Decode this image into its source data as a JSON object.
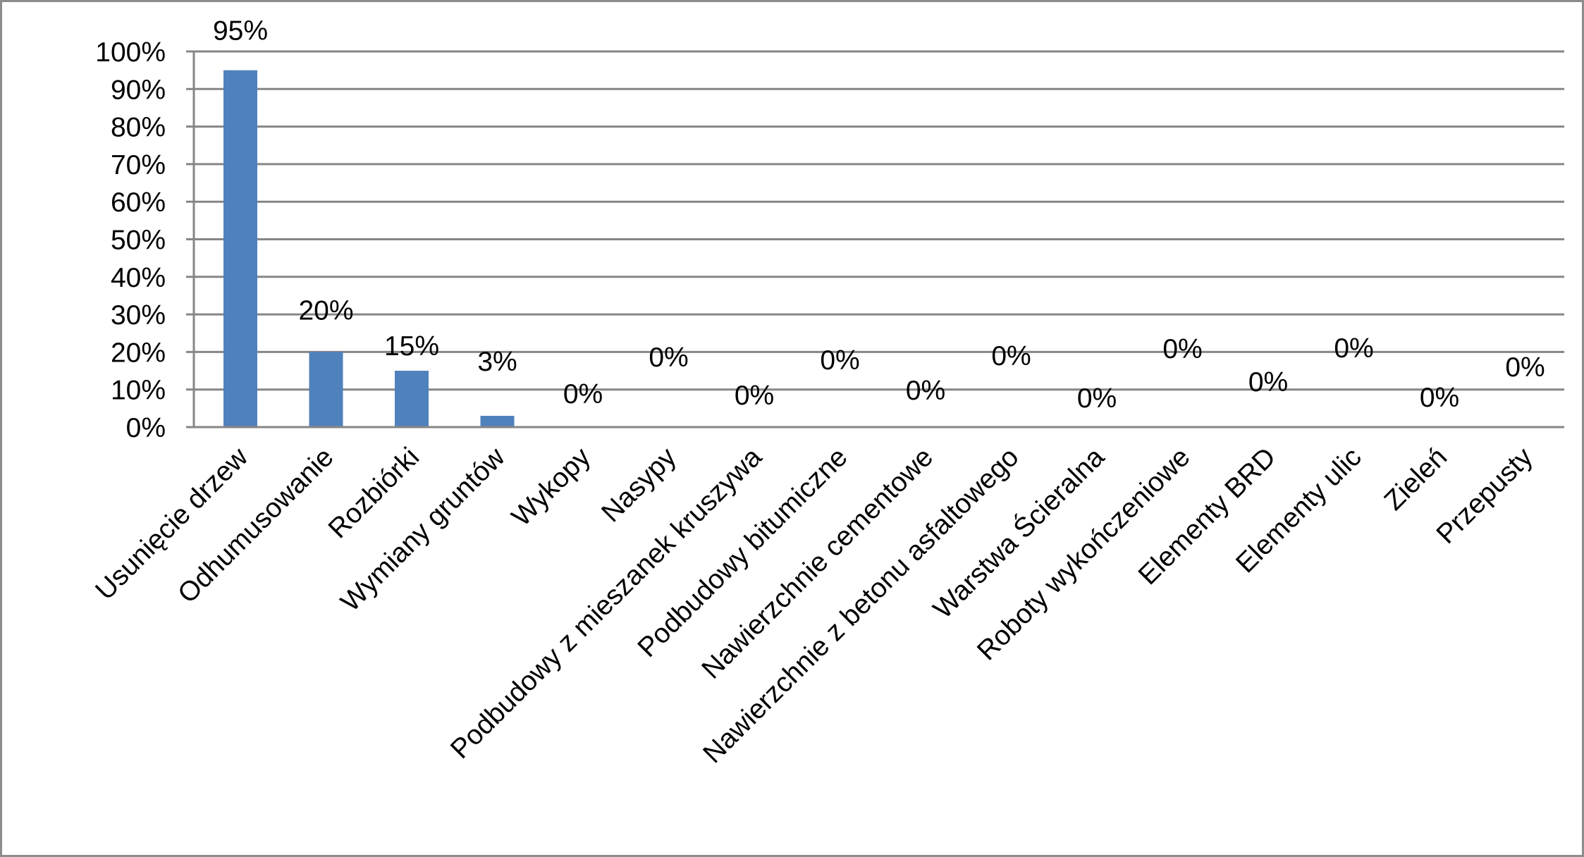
{
  "chart_data": {
    "type": "bar",
    "title": "",
    "xlabel": "",
    "ylabel": "",
    "ylim": [
      0,
      100
    ],
    "y_ticks": [
      "0%",
      "10%",
      "20%",
      "30%",
      "40%",
      "50%",
      "60%",
      "70%",
      "80%",
      "90%",
      "100%"
    ],
    "grid": true,
    "legend": "none",
    "bar_color": "#4f81bd",
    "grid_color": "#868686",
    "categories": [
      "Usunięcie drzew",
      "Odhumusowanie",
      "Rozbiórki",
      "Wymiany gruntów",
      "Wykopy",
      "Nasypy",
      "Podbudowy z mieszanek kruszywa",
      "Podbudowy bitumiczne",
      "Nawierzchnie cementowe",
      "Nawierzchnie z betonu asfaltowego",
      "Warstwa Ścieralna",
      "Roboty wykończeniowe",
      "Elementy BRD",
      "Elementy ulic",
      "Zieleń",
      "Przepusty"
    ],
    "values": [
      95,
      20,
      15,
      3,
      0,
      0,
      0,
      0,
      0,
      0,
      0,
      0,
      0,
      0,
      0,
      0
    ],
    "data_labels": [
      "95%",
      "20%",
      "15%",
      "3%",
      "0%",
      "0%",
      "0%",
      "0%",
      "0%",
      "0%",
      "0%",
      "0%",
      "0%",
      "0%",
      "0%",
      "0%"
    ]
  }
}
